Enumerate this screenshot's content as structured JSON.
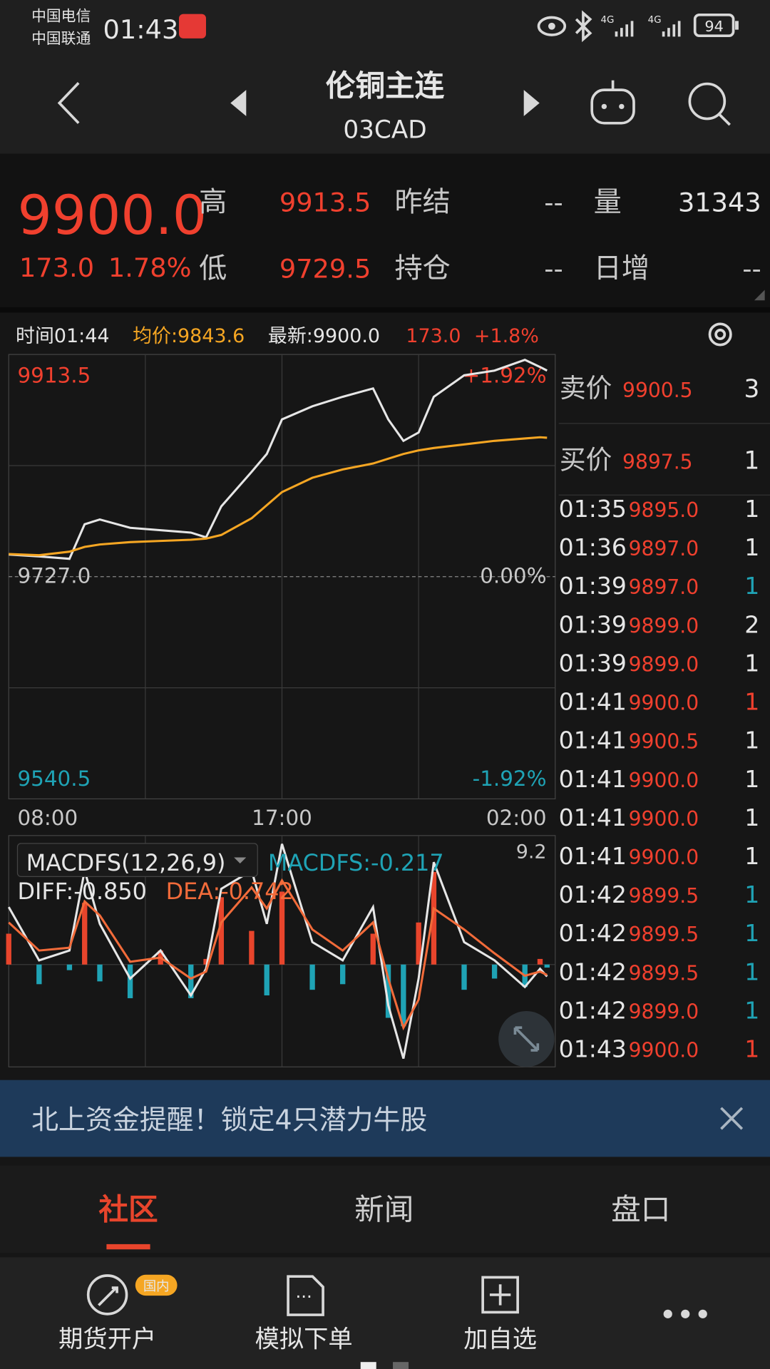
{
  "status_bar": {
    "carrier_1": "中国电信",
    "carrier_2": "中国联通",
    "time": "01:43",
    "network_1": "4G",
    "network_2": "4G",
    "battery": "94"
  },
  "header": {
    "title": "伦铜主连",
    "subtitle": "03CAD"
  },
  "quote": {
    "price": "9900.0",
    "change": "173.0",
    "change_pct": "1.78%",
    "fields": [
      {
        "label": "高",
        "value": "9913.5"
      },
      {
        "label": "低",
        "value": "9729.5"
      },
      {
        "label": "昨结",
        "value": "--"
      },
      {
        "label": "持仓",
        "value": "--"
      },
      {
        "label": "量",
        "value": "31343"
      },
      {
        "label": "日增",
        "value": "--"
      }
    ]
  },
  "info_bar": {
    "time": "时间01:44",
    "avg": "均价:9843.6",
    "latest": "最新:9900.0",
    "change": "173.0",
    "change_pct": "+1.8%"
  },
  "chart_data": [
    {
      "type": "line",
      "x": [
        8,
        9,
        10,
        10.5,
        11,
        12,
        13,
        14,
        14.5,
        15,
        16,
        16.5,
        17,
        18,
        19,
        20,
        20.5,
        21,
        21.5,
        22,
        23,
        24,
        25,
        25.5,
        25.73
      ],
      "xlim": [
        8,
        26
      ],
      "xticks": [
        {
          "value": 8,
          "label": "08:00"
        },
        {
          "value": 17,
          "label": "17:00"
        },
        {
          "value": 26,
          "label": "02:00"
        }
      ],
      "ylim": [
        9540.5,
        9913.5
      ],
      "yticks": [
        9913.5,
        {
          "value": 9727,
          "label": "9727.0"
        },
        9540.5
      ],
      "y2lim": [
        -1.92,
        1.92
      ],
      "y2ticks": [
        {
          "value": 1.92,
          "label": "+1.92%"
        },
        {
          "value": 0,
          "label": "0.00%"
        },
        {
          "value": -1.92,
          "label": "-1.92%"
        }
      ],
      "grid": true,
      "series": [
        {
          "color": "#e6e6e6",
          "values": [
            9745.6,
            9744,
            9742,
            9771,
            9775,
            9768,
            9766,
            9764,
            9760,
            9786,
            9815,
            9830,
            9859,
            9870,
            9878,
            9885,
            9859,
            9841,
            9848,
            9878,
            9896,
            9900,
            9909,
            9903,
            9900.0
          ]
        },
        {
          "color": "#f5a623",
          "values": [
            9746,
            9745,
            9748,
            9752,
            9754,
            9756,
            9757,
            9758,
            9759,
            9762,
            9776,
            9787,
            9798,
            9810,
            9817,
            9822,
            9826,
            9830,
            9833,
            9835,
            9838,
            9841,
            9843,
            9844,
            9843.6
          ]
        }
      ]
    },
    {
      "type": "macd",
      "x": [
        8,
        9,
        10,
        10.5,
        11,
        12,
        13,
        14,
        14.5,
        15,
        16,
        16.5,
        17,
        18,
        19,
        20,
        20.5,
        21,
        21.5,
        22,
        23,
        24,
        25,
        25.5,
        25.73
      ],
      "xlim": [
        8,
        26
      ],
      "ylim": [
        -7.3,
        9.2
      ],
      "yticks": [
        9.2
      ],
      "legend": [
        {
          "text": "MACDFS(12,26,9)",
          "color": "#e6e6e6"
        },
        {
          "text": "MACDFS:-0.217",
          "color": "#1fa3b5"
        },
        {
          "text": "DIFF:-0.850",
          "color": "#e6e6e6"
        },
        {
          "text": "DEA:-0.742",
          "color": "#f26b3a"
        }
      ],
      "up_color": "#e8452c",
      "down_color": "#1fa3b5",
      "series": [
        {
          "kind": "bar",
          "values": [
            2.2,
            -1.4,
            -0.4,
            4.4,
            -1.2,
            -2.4,
            1.0,
            -2.4,
            0.4,
            4.8,
            2.4,
            -2.2,
            5.2,
            -1.8,
            -1.4,
            2.2,
            -3.8,
            -4.4,
            3.0,
            6.6,
            -1.8,
            -1.0,
            -1.6,
            0.4,
            -0.217
          ]
        },
        {
          "kind": "line",
          "color": "#e6e6e6",
          "values": [
            4.1,
            0.3,
            1.0,
            6.7,
            2.9,
            -1.0,
            1.0,
            -2.2,
            -0.3,
            5.4,
            6.7,
            2.9,
            8.6,
            1.6,
            0.3,
            4.1,
            -2.9,
            -6.7,
            -1.0,
            7.3,
            1.6,
            0.3,
            -1.6,
            -0.3,
            -0.85
          ]
        },
        {
          "kind": "line",
          "color": "#f26b3a",
          "values": [
            3.0,
            1.0,
            1.2,
            4.5,
            3.5,
            0.2,
            0.5,
            -1.0,
            -0.5,
            3.0,
            5.5,
            4.0,
            6.0,
            2.5,
            1.0,
            3.0,
            -1.0,
            -4.5,
            -2.5,
            4.0,
            2.5,
            0.8,
            -0.8,
            -0.5,
            -0.742
          ]
        }
      ]
    }
  ],
  "order_book": {
    "ask": {
      "label": "卖价",
      "price": "9900.5",
      "volume": "3"
    },
    "bid": {
      "label": "买价",
      "price": "9897.5",
      "volume": "1"
    },
    "trades": [
      {
        "time": "01:35",
        "price": "9895.0",
        "volume": "1",
        "color": "#e6e6e6"
      },
      {
        "time": "01:36",
        "price": "9897.0",
        "volume": "1",
        "color": "#e6e6e6"
      },
      {
        "time": "01:39",
        "price": "9897.0",
        "volume": "1",
        "color": "#1fa3b5"
      },
      {
        "time": "01:39",
        "price": "9899.0",
        "volume": "2",
        "color": "#e6e6e6"
      },
      {
        "time": "01:39",
        "price": "9899.0",
        "volume": "1",
        "color": "#e6e6e6"
      },
      {
        "time": "01:41",
        "price": "9900.0",
        "volume": "1",
        "color": "#f0402e"
      },
      {
        "time": "01:41",
        "price": "9900.5",
        "volume": "1",
        "color": "#e6e6e6"
      },
      {
        "time": "01:41",
        "price": "9900.0",
        "volume": "1",
        "color": "#e6e6e6"
      },
      {
        "time": "01:41",
        "price": "9900.0",
        "volume": "1",
        "color": "#e6e6e6"
      },
      {
        "time": "01:41",
        "price": "9900.0",
        "volume": "1",
        "color": "#e6e6e6"
      },
      {
        "time": "01:42",
        "price": "9899.5",
        "volume": "1",
        "color": "#1fa3b5"
      },
      {
        "time": "01:42",
        "price": "9899.5",
        "volume": "1",
        "color": "#1fa3b5"
      },
      {
        "time": "01:42",
        "price": "9899.5",
        "volume": "1",
        "color": "#1fa3b5"
      },
      {
        "time": "01:42",
        "price": "9899.0",
        "volume": "1",
        "color": "#1fa3b5"
      },
      {
        "time": "01:43",
        "price": "9900.0",
        "volume": "1",
        "color": "#f0402e"
      }
    ]
  },
  "banner": {
    "text": "北上资金提醒！锁定4只潜力牛股"
  },
  "tabs": [
    "社区",
    "新闻",
    "盘口"
  ],
  "toolbar": {
    "account": "期货开户",
    "badge": "国内",
    "simulate": "模拟下单",
    "watch": "加自选"
  }
}
